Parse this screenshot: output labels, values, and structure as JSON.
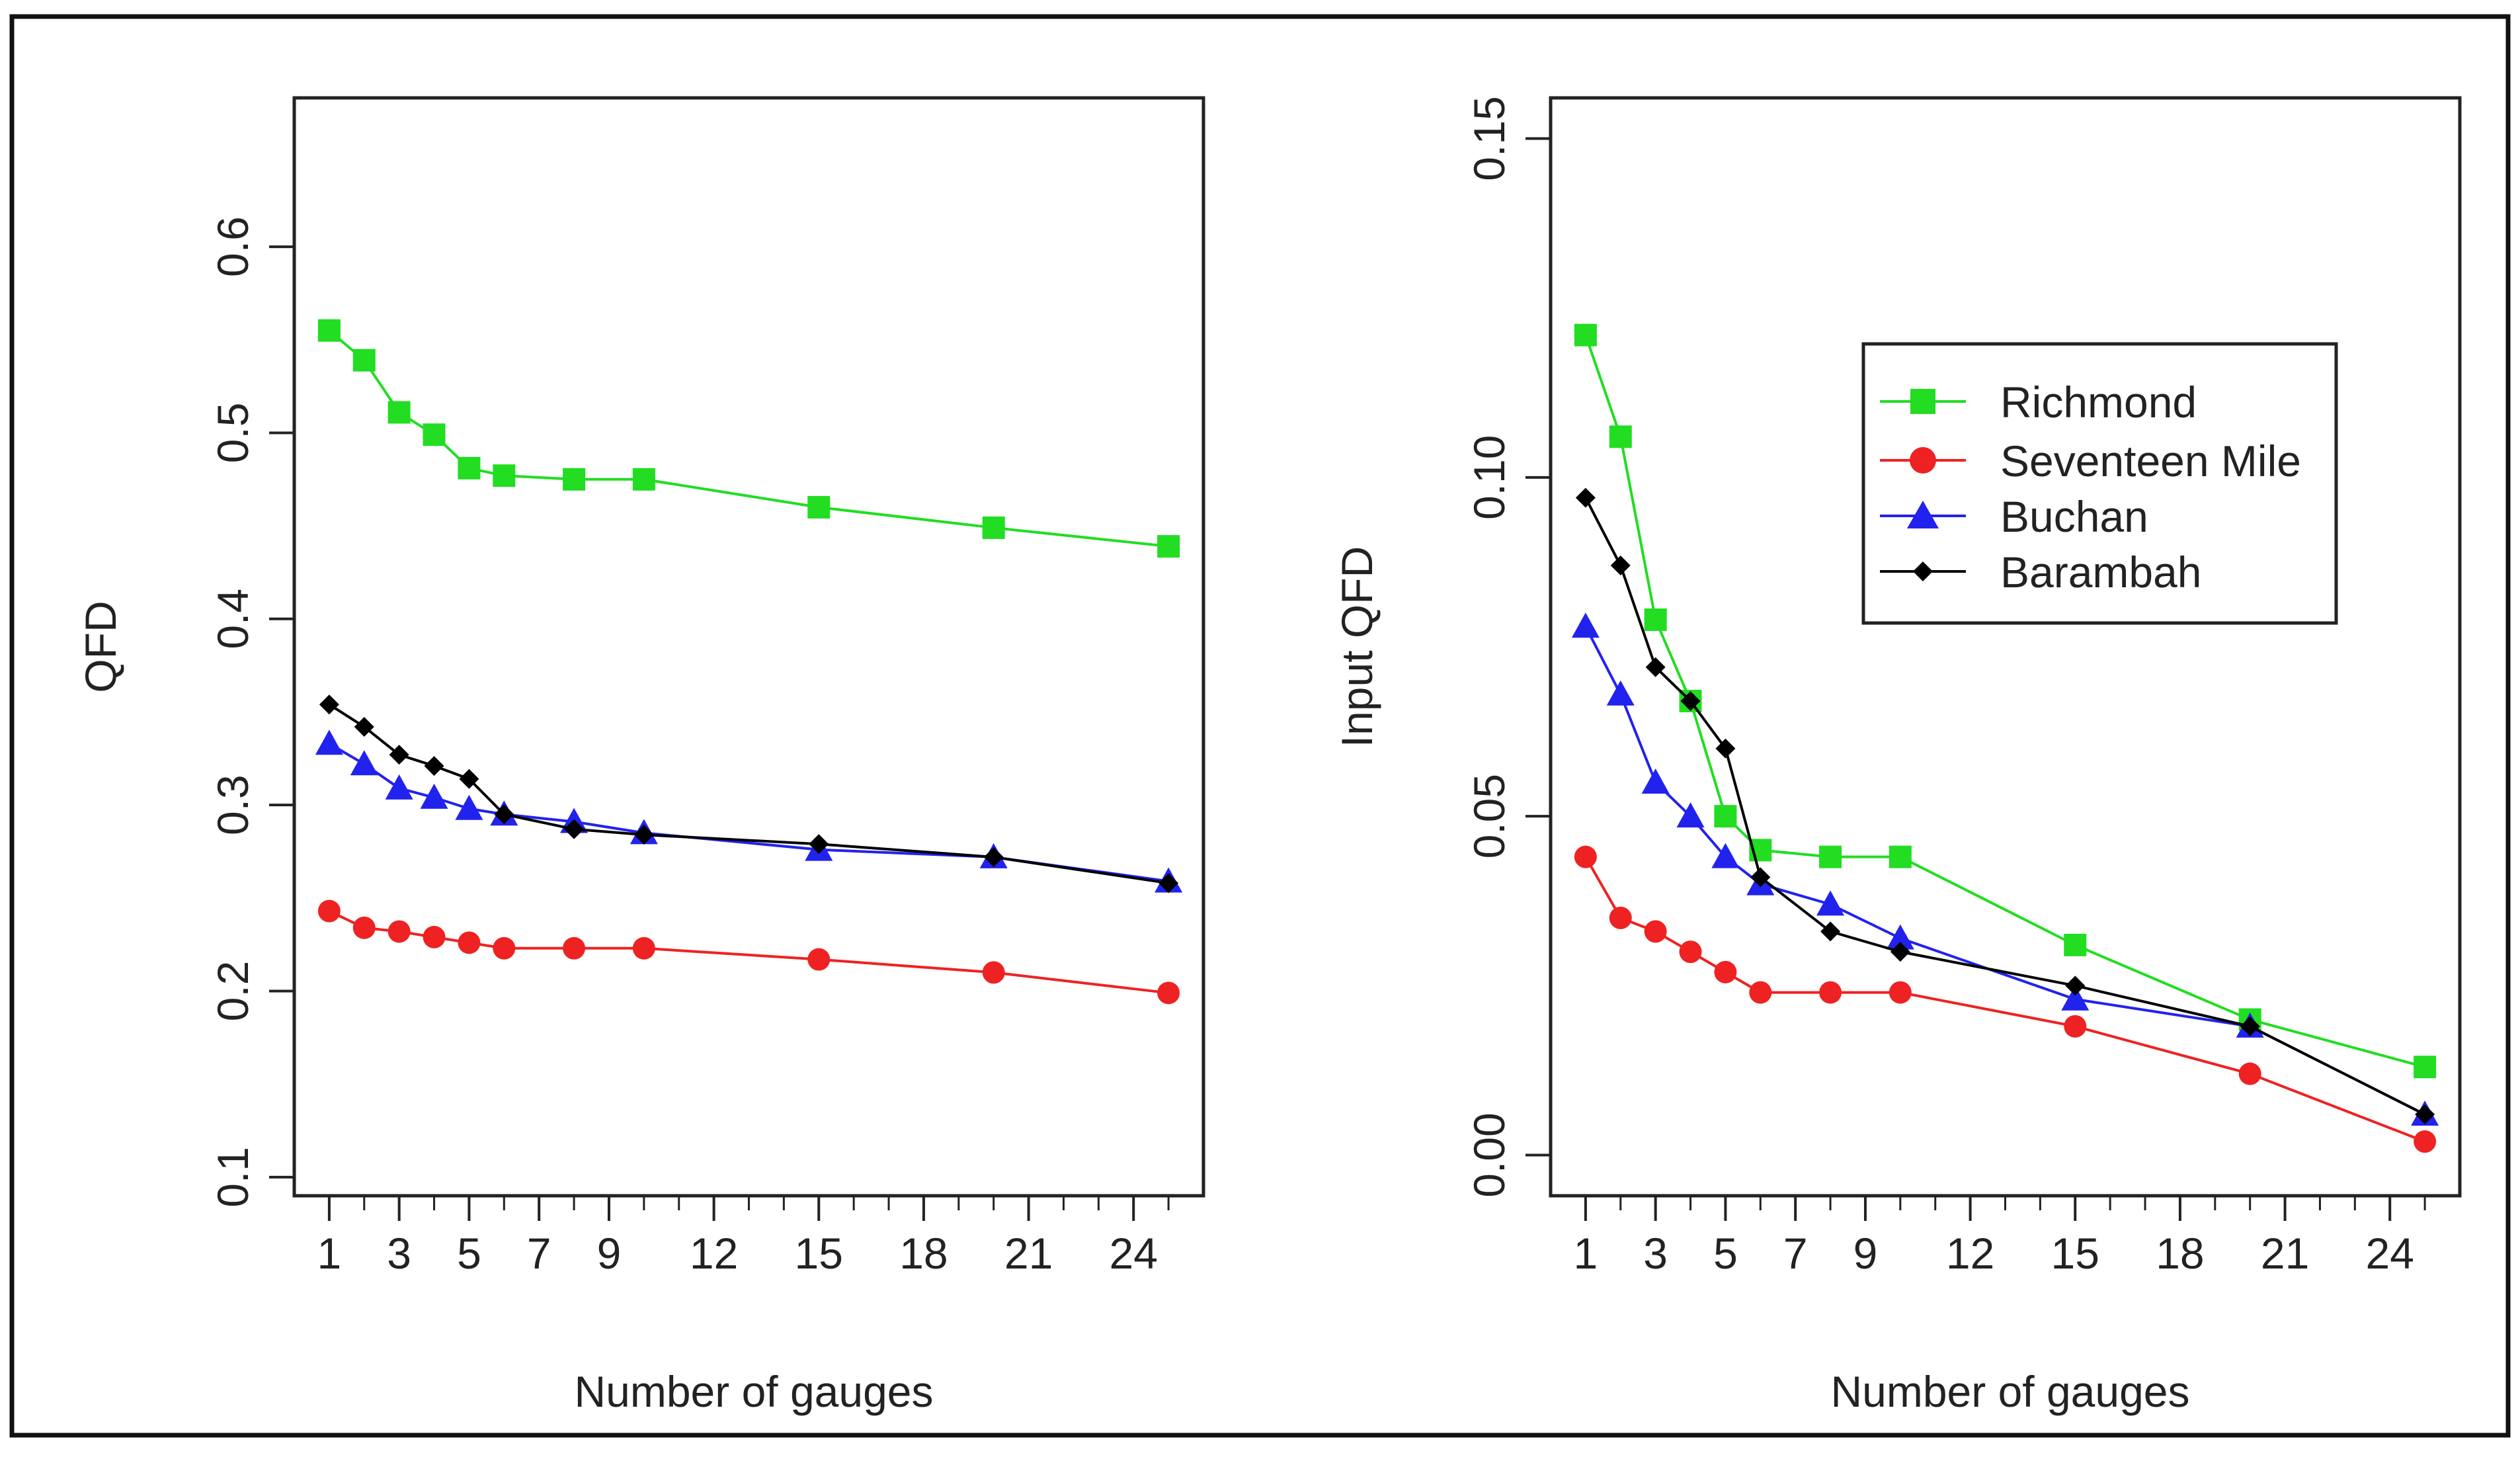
{
  "colors": {
    "richmond": "#22dd22",
    "seventeen_mile": "#ee2222",
    "buchan": "#2222ee",
    "barambah": "#000000",
    "axis": "#222222"
  },
  "legend": {
    "items": [
      {
        "label": "Richmond",
        "marker": "square",
        "color_key": "richmond"
      },
      {
        "label": "Seventeen Mile",
        "marker": "circle",
        "color_key": "seventeen_mile"
      },
      {
        "label": "Buchan",
        "marker": "triangle",
        "color_key": "buchan"
      },
      {
        "label": "Barambah",
        "marker": "diamond",
        "color_key": "barambah"
      }
    ]
  },
  "chart_data": [
    {
      "type": "line",
      "title": "",
      "xlabel": "Number of gauges",
      "ylabel": "QFD",
      "xlim": [
        0,
        26
      ],
      "ylim": [
        0.09,
        0.68
      ],
      "x_ticks": [
        1,
        3,
        5,
        7,
        9,
        12,
        15,
        18,
        21,
        24
      ],
      "x_minor_ticks": [
        1,
        2,
        3,
        4,
        5,
        6,
        7,
        8,
        9,
        10,
        11,
        12,
        13,
        14,
        15,
        16,
        17,
        18,
        19,
        20,
        21,
        22,
        23,
        24,
        25
      ],
      "y_ticks": [
        0.1,
        0.2,
        0.3,
        0.4,
        0.5,
        0.6
      ],
      "y_tick_labels": [
        "0.1",
        "0.2",
        "0.3",
        "0.4",
        "0.5",
        "0.6"
      ],
      "grid": false,
      "series": [
        {
          "name": "Richmond",
          "marker": "square",
          "color_key": "richmond",
          "x": [
            1,
            2,
            3,
            4,
            5,
            6,
            8,
            10,
            15,
            20,
            25
          ],
          "y": [
            0.555,
            0.539,
            0.511,
            0.499,
            0.481,
            0.477,
            0.475,
            0.475,
            0.46,
            0.449,
            0.439
          ]
        },
        {
          "name": "Seventeen Mile",
          "marker": "circle",
          "color_key": "seventeen_mile",
          "x": [
            1,
            2,
            3,
            4,
            5,
            6,
            8,
            10,
            15,
            20,
            25
          ],
          "y": [
            0.243,
            0.234,
            0.232,
            0.229,
            0.226,
            0.223,
            0.223,
            0.223,
            0.217,
            0.21,
            0.199
          ]
        },
        {
          "name": "Buchan",
          "marker": "triangle",
          "color_key": "buchan",
          "x": [
            1,
            2,
            3,
            4,
            5,
            6,
            8,
            10,
            15,
            20,
            25
          ],
          "y": [
            0.333,
            0.322,
            0.309,
            0.304,
            0.298,
            0.295,
            0.291,
            0.285,
            0.276,
            0.272,
            0.259
          ]
        },
        {
          "name": "Barambah",
          "marker": "diamond",
          "color_key": "barambah",
          "x": [
            1,
            2,
            3,
            4,
            5,
            6,
            8,
            10,
            15,
            20,
            25
          ],
          "y": [
            0.354,
            0.342,
            0.327,
            0.321,
            0.314,
            0.295,
            0.287,
            0.284,
            0.279,
            0.272,
            0.258
          ]
        }
      ]
    },
    {
      "type": "line",
      "title": "",
      "xlabel": "Number of gauges",
      "ylabel": "Input QFD",
      "xlim": [
        0,
        26
      ],
      "ylim": [
        -0.006,
        0.156
      ],
      "x_ticks": [
        1,
        3,
        5,
        7,
        9,
        12,
        15,
        18,
        21,
        24
      ],
      "x_minor_ticks": [
        1,
        2,
        3,
        4,
        5,
        6,
        7,
        8,
        9,
        10,
        11,
        12,
        13,
        14,
        15,
        16,
        17,
        18,
        19,
        20,
        21,
        22,
        23,
        24,
        25
      ],
      "y_ticks": [
        0.0,
        0.05,
        0.1,
        0.15
      ],
      "y_tick_labels": [
        "0.00",
        "0.05",
        "0.10",
        "0.15"
      ],
      "grid": false,
      "legend_position": "upper-right",
      "series": [
        {
          "name": "Richmond",
          "marker": "square",
          "color_key": "richmond",
          "x": [
            1,
            2,
            3,
            4,
            5,
            6,
            8,
            10,
            15,
            20,
            25
          ],
          "y": [
            0.121,
            0.106,
            0.079,
            0.067,
            0.05,
            0.045,
            0.044,
            0.044,
            0.031,
            0.02,
            0.013
          ]
        },
        {
          "name": "Seventeen Mile",
          "marker": "circle",
          "color_key": "seventeen_mile",
          "x": [
            1,
            2,
            3,
            4,
            5,
            6,
            8,
            10,
            15,
            20,
            25
          ],
          "y": [
            0.044,
            0.035,
            0.033,
            0.03,
            0.027,
            0.024,
            0.024,
            0.024,
            0.019,
            0.012,
            0.002
          ]
        },
        {
          "name": "Buchan",
          "marker": "triangle",
          "color_key": "buchan",
          "x": [
            1,
            2,
            3,
            4,
            5,
            6,
            8,
            10,
            15,
            20,
            25
          ],
          "y": [
            0.078,
            0.068,
            0.055,
            0.05,
            0.044,
            0.04,
            0.037,
            0.032,
            0.023,
            0.019,
            0.006
          ]
        },
        {
          "name": "Barambah",
          "marker": "diamond",
          "color_key": "barambah",
          "x": [
            1,
            2,
            3,
            4,
            5,
            6,
            8,
            10,
            15,
            20,
            25
          ],
          "y": [
            0.097,
            0.087,
            0.072,
            0.067,
            0.06,
            0.041,
            0.033,
            0.03,
            0.025,
            0.019,
            0.006
          ]
        }
      ]
    }
  ]
}
